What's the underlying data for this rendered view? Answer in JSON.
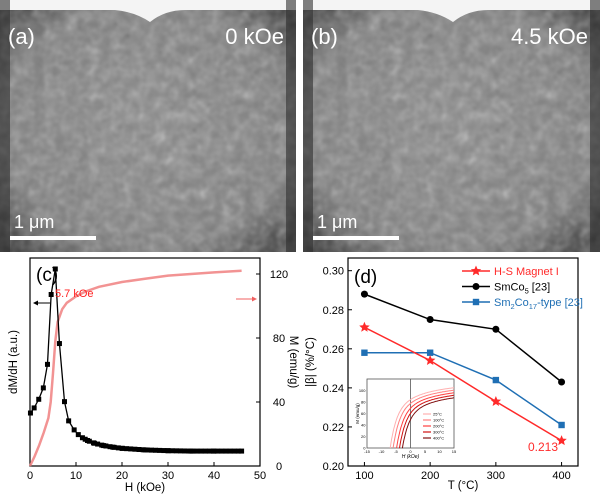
{
  "micrographs": [
    {
      "panel_label": "(a)",
      "field_label": "0 kOe",
      "scale_bar": "1 μm"
    },
    {
      "panel_label": "(b)",
      "field_label": "4.5 kOe",
      "scale_bar": "1 μm"
    }
  ],
  "chart_data": [
    {
      "type": "line",
      "panel_label": "(c)",
      "xlabel": "H (kOe)",
      "xlim": [
        0,
        50
      ],
      "xticks": [
        "0",
        "10",
        "20",
        "30",
        "40",
        "50"
      ],
      "ylabel_left": "dM/dH (a.u.)",
      "ylabel_right": "M (emu/g)",
      "ylim_right": [
        0,
        130
      ],
      "yticks_right": [
        "0",
        "40",
        "80",
        "120"
      ],
      "annotation": "5.7 kOe",
      "colors": {
        "dMdH": "#000000",
        "M": "#f08080",
        "annotation": "#ff2020"
      },
      "series": [
        {
          "axis": "left",
          "marker": "square",
          "x": [
            0.1,
            0.9,
            1.9,
            2.9,
            3.8,
            4.6,
            5.5,
            6.4,
            7.5,
            8.4,
            9.6,
            10.5,
            11.4,
            12.5,
            14,
            16,
            18,
            20,
            25,
            30,
            35,
            40,
            46
          ],
          "y": [
            135,
            148,
            170,
            199,
            259,
            437,
            502,
            312,
            164,
            115,
            92,
            80,
            72,
            65,
            58,
            52,
            48,
            45,
            41,
            39,
            38,
            38,
            38
          ]
        },
        {
          "axis": "right",
          "marker": "none",
          "x": [
            0,
            1,
            2,
            3,
            4,
            4.5,
            5,
            5.5,
            6,
            7,
            8,
            10,
            12,
            15,
            20,
            25,
            30,
            35,
            40,
            46
          ],
          "y": [
            0,
            6,
            13,
            21,
            30,
            40,
            58,
            78,
            90,
            98,
            102,
            106,
            109,
            112,
            115,
            117,
            119,
            120,
            121,
            122
          ]
        }
      ]
    },
    {
      "type": "line",
      "panel_label": "(d)",
      "xlabel": "T (°C)",
      "ylabel": "|β| (%/°C)",
      "categories": [
        100,
        200,
        300,
        400
      ],
      "xlim": [
        75,
        425
      ],
      "ylim": [
        0.2,
        0.3
      ],
      "yticks": [
        "0.20",
        "0.22",
        "0.24",
        "0.26",
        "0.28",
        "0.30"
      ],
      "xticks": [
        "100",
        "200",
        "300",
        "400"
      ],
      "legend_position": "top-right",
      "annotation": "0.213",
      "series": [
        {
          "name": "H-S Magnet I",
          "marker": "star",
          "color": "#ff2a2a",
          "values": [
            0.271,
            0.254,
            0.233,
            0.213
          ]
        },
        {
          "name": "SmCo5 [23]",
          "name_base": "SmCo",
          "name_sub": "5",
          "name_tail": " [23]",
          "marker": "circle",
          "color": "#000000",
          "values": [
            0.288,
            0.275,
            0.27,
            0.243
          ]
        },
        {
          "name": "Sm2Co17-type [23]",
          "name_base": "Sm",
          "name_sub": "2",
          "name_mid": "Co",
          "name_sub2": "17",
          "name_tail": "-type [23]",
          "marker": "square",
          "color": "#1f6fb4",
          "values": [
            0.258,
            0.258,
            0.244,
            0.221
          ]
        }
      ],
      "inset": {
        "xlabel": "H (kOe)",
        "ylabel": "M (emu/g)",
        "xticks": [
          "-15",
          "-10",
          "-5",
          "0",
          "5",
          "10",
          "15"
        ],
        "yticks": [
          "0",
          "20",
          "40",
          "60",
          "80",
          "100"
        ],
        "legend": [
          "25°C",
          "100°C",
          "200°C",
          "300°C",
          "400°C"
        ],
        "coercivity_kOe": [
          -7,
          -6,
          -4.8,
          -3.8,
          -2.8
        ],
        "colors": [
          "#ffb0b0",
          "#ff8080",
          "#ff4040",
          "#d01010",
          "#801010"
        ]
      }
    }
  ]
}
